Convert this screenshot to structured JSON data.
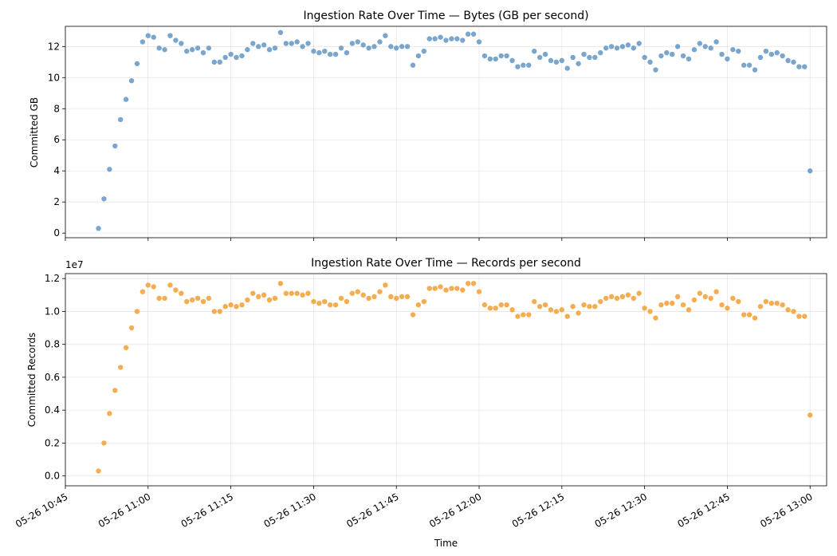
{
  "chart_data": [
    {
      "type": "scatter",
      "title": "Ingestion Rate Over Time — Bytes (GB per second)",
      "ylabel": "Committed GB",
      "xlabel": "",
      "color": "#6b9bc7",
      "ylim": [
        -0.3,
        13.3
      ],
      "yticks": [
        "0",
        "2",
        "4",
        "6",
        "8",
        "10",
        "12"
      ],
      "grid": true,
      "x_range": [
        "2025-05-26 10:45",
        "2025-05-26 13:03"
      ],
      "x": [
        "10:51",
        "10:52",
        "10:53",
        "10:54",
        "10:55",
        "10:56",
        "10:57",
        "10:58",
        "10:59",
        "11:00",
        "11:01",
        "11:02",
        "11:03",
        "11:04",
        "11:05",
        "11:06",
        "11:07",
        "11:08",
        "11:09",
        "11:10",
        "11:11",
        "11:12",
        "11:13",
        "11:14",
        "11:15",
        "11:16",
        "11:17",
        "11:18",
        "11:19",
        "11:20",
        "11:21",
        "11:22",
        "11:23",
        "11:24",
        "11:25",
        "11:26",
        "11:27",
        "11:28",
        "11:29",
        "11:30",
        "11:31",
        "11:32",
        "11:33",
        "11:34",
        "11:35",
        "11:36",
        "11:37",
        "11:38",
        "11:39",
        "11:40",
        "11:41",
        "11:42",
        "11:43",
        "11:44",
        "11:45",
        "11:46",
        "11:47",
        "11:48",
        "11:49",
        "11:50",
        "11:51",
        "11:52",
        "11:53",
        "11:54",
        "11:55",
        "11:56",
        "11:57",
        "11:58",
        "11:59",
        "12:00",
        "12:01",
        "12:02",
        "12:03",
        "12:04",
        "12:05",
        "12:06",
        "12:07",
        "12:08",
        "12:09",
        "12:10",
        "12:11",
        "12:12",
        "12:13",
        "12:14",
        "12:15",
        "12:16",
        "12:17",
        "12:18",
        "12:19",
        "12:20",
        "12:21",
        "12:22",
        "12:23",
        "12:24",
        "12:25",
        "12:26",
        "12:27",
        "12:28",
        "12:29",
        "12:30",
        "12:31",
        "12:32",
        "12:33",
        "12:34",
        "12:35",
        "12:36",
        "12:37",
        "12:38",
        "12:39",
        "12:40",
        "12:41",
        "12:42",
        "12:43",
        "12:44",
        "12:45",
        "12:46",
        "12:47",
        "12:48",
        "12:49",
        "12:50",
        "12:51",
        "12:52",
        "12:53",
        "12:54",
        "12:55",
        "12:56",
        "12:57",
        "12:58",
        "12:59",
        "13:00"
      ],
      "values": [
        0.3,
        2.2,
        4.1,
        5.6,
        7.3,
        8.6,
        9.8,
        10.9,
        12.3,
        12.7,
        12.6,
        11.9,
        11.8,
        12.7,
        12.4,
        12.2,
        11.7,
        11.8,
        11.9,
        11.6,
        11.9,
        11.0,
        11.0,
        11.3,
        11.5,
        11.3,
        11.4,
        11.8,
        12.2,
        12.0,
        12.1,
        11.8,
        11.9,
        12.9,
        12.2,
        12.2,
        12.3,
        12.0,
        12.2,
        11.7,
        11.6,
        11.7,
        11.5,
        11.5,
        11.9,
        11.6,
        12.2,
        12.3,
        12.1,
        11.9,
        12.0,
        12.3,
        12.7,
        12.0,
        11.9,
        12.0,
        12.0,
        10.8,
        11.4,
        11.7,
        12.5,
        12.5,
        12.6,
        12.4,
        12.5,
        12.5,
        12.4,
        12.8,
        12.8,
        12.3,
        11.4,
        11.2,
        11.2,
        11.4,
        11.4,
        11.1,
        10.7,
        10.8,
        10.8,
        11.7,
        11.3,
        11.5,
        11.1,
        11.0,
        11.1,
        10.6,
        11.3,
        10.9,
        11.5,
        11.3,
        11.3,
        11.6,
        11.9,
        12.0,
        11.9,
        12.0,
        12.1,
        11.9,
        12.2,
        11.3,
        11.0,
        10.5,
        11.4,
        11.6,
        11.5,
        12.0,
        11.4,
        11.2,
        11.8,
        12.2,
        12.0,
        11.9,
        12.3,
        11.5,
        11.2,
        11.8,
        11.7,
        10.8,
        10.8,
        10.5,
        11.3,
        11.7,
        11.5,
        11.6,
        11.4,
        11.1,
        11.0,
        10.7,
        10.7,
        4.0
      ]
    },
    {
      "type": "scatter",
      "title": "Ingestion Rate Over Time — Records per second",
      "ylabel": "Committed Records",
      "xlabel": "Time",
      "offset_label": "1e7",
      "color": "#f5a33d",
      "ylim": [
        -0.06,
        1.23
      ],
      "yticks": [
        "0.0",
        "0.2",
        "0.4",
        "0.6",
        "0.8",
        "1.0",
        "1.2"
      ],
      "grid": true,
      "xticks": [
        "05-26 10:45",
        "05-26 11:00",
        "05-26 11:15",
        "05-26 11:30",
        "05-26 11:45",
        "05-26 12:00",
        "05-26 12:15",
        "05-26 12:30",
        "05-26 12:45",
        "05-26 13:00"
      ],
      "x": [
        "10:51",
        "10:52",
        "10:53",
        "10:54",
        "10:55",
        "10:56",
        "10:57",
        "10:58",
        "10:59",
        "11:00",
        "11:01",
        "11:02",
        "11:03",
        "11:04",
        "11:05",
        "11:06",
        "11:07",
        "11:08",
        "11:09",
        "11:10",
        "11:11",
        "11:12",
        "11:13",
        "11:14",
        "11:15",
        "11:16",
        "11:17",
        "11:18",
        "11:19",
        "11:20",
        "11:21",
        "11:22",
        "11:23",
        "11:24",
        "11:25",
        "11:26",
        "11:27",
        "11:28",
        "11:29",
        "11:30",
        "11:31",
        "11:32",
        "11:33",
        "11:34",
        "11:35",
        "11:36",
        "11:37",
        "11:38",
        "11:39",
        "11:40",
        "11:41",
        "11:42",
        "11:43",
        "11:44",
        "11:45",
        "11:46",
        "11:47",
        "11:48",
        "11:49",
        "11:50",
        "11:51",
        "11:52",
        "11:53",
        "11:54",
        "11:55",
        "11:56",
        "11:57",
        "11:58",
        "11:59",
        "12:00",
        "12:01",
        "12:02",
        "12:03",
        "12:04",
        "12:05",
        "12:06",
        "12:07",
        "12:08",
        "12:09",
        "12:10",
        "12:11",
        "12:12",
        "12:13",
        "12:14",
        "12:15",
        "12:16",
        "12:17",
        "12:18",
        "12:19",
        "12:20",
        "12:21",
        "12:22",
        "12:23",
        "12:24",
        "12:25",
        "12:26",
        "12:27",
        "12:28",
        "12:29",
        "12:30",
        "12:31",
        "12:32",
        "12:33",
        "12:34",
        "12:35",
        "12:36",
        "12:37",
        "12:38",
        "12:39",
        "12:40",
        "12:41",
        "12:42",
        "12:43",
        "12:44",
        "12:45",
        "12:46",
        "12:47",
        "12:48",
        "12:49",
        "12:50",
        "12:51",
        "12:52",
        "12:53",
        "12:54",
        "12:55",
        "12:56",
        "12:57",
        "12:58",
        "12:59",
        "13:00"
      ],
      "values": [
        0.03,
        0.2,
        0.38,
        0.52,
        0.66,
        0.78,
        0.9,
        1.0,
        1.12,
        1.16,
        1.15,
        1.08,
        1.08,
        1.16,
        1.13,
        1.11,
        1.06,
        1.07,
        1.08,
        1.06,
        1.08,
        1.0,
        1.0,
        1.03,
        1.04,
        1.03,
        1.04,
        1.07,
        1.11,
        1.09,
        1.1,
        1.07,
        1.08,
        1.17,
        1.11,
        1.11,
        1.11,
        1.1,
        1.11,
        1.06,
        1.05,
        1.06,
        1.04,
        1.04,
        1.08,
        1.06,
        1.11,
        1.12,
        1.1,
        1.08,
        1.09,
        1.12,
        1.16,
        1.09,
        1.08,
        1.09,
        1.09,
        0.98,
        1.04,
        1.06,
        1.14,
        1.14,
        1.15,
        1.13,
        1.14,
        1.14,
        1.13,
        1.17,
        1.17,
        1.12,
        1.04,
        1.02,
        1.02,
        1.04,
        1.04,
        1.01,
        0.97,
        0.98,
        0.98,
        1.06,
        1.03,
        1.04,
        1.01,
        1.0,
        1.01,
        0.97,
        1.03,
        0.99,
        1.04,
        1.03,
        1.03,
        1.06,
        1.08,
        1.09,
        1.08,
        1.09,
        1.1,
        1.08,
        1.11,
        1.02,
        1.0,
        0.96,
        1.04,
        1.05,
        1.05,
        1.09,
        1.04,
        1.01,
        1.07,
        1.11,
        1.09,
        1.08,
        1.12,
        1.04,
        1.02,
        1.08,
        1.06,
        0.98,
        0.98,
        0.96,
        1.03,
        1.06,
        1.05,
        1.05,
        1.04,
        1.01,
        1.0,
        0.97,
        0.97,
        0.37
      ]
    }
  ]
}
